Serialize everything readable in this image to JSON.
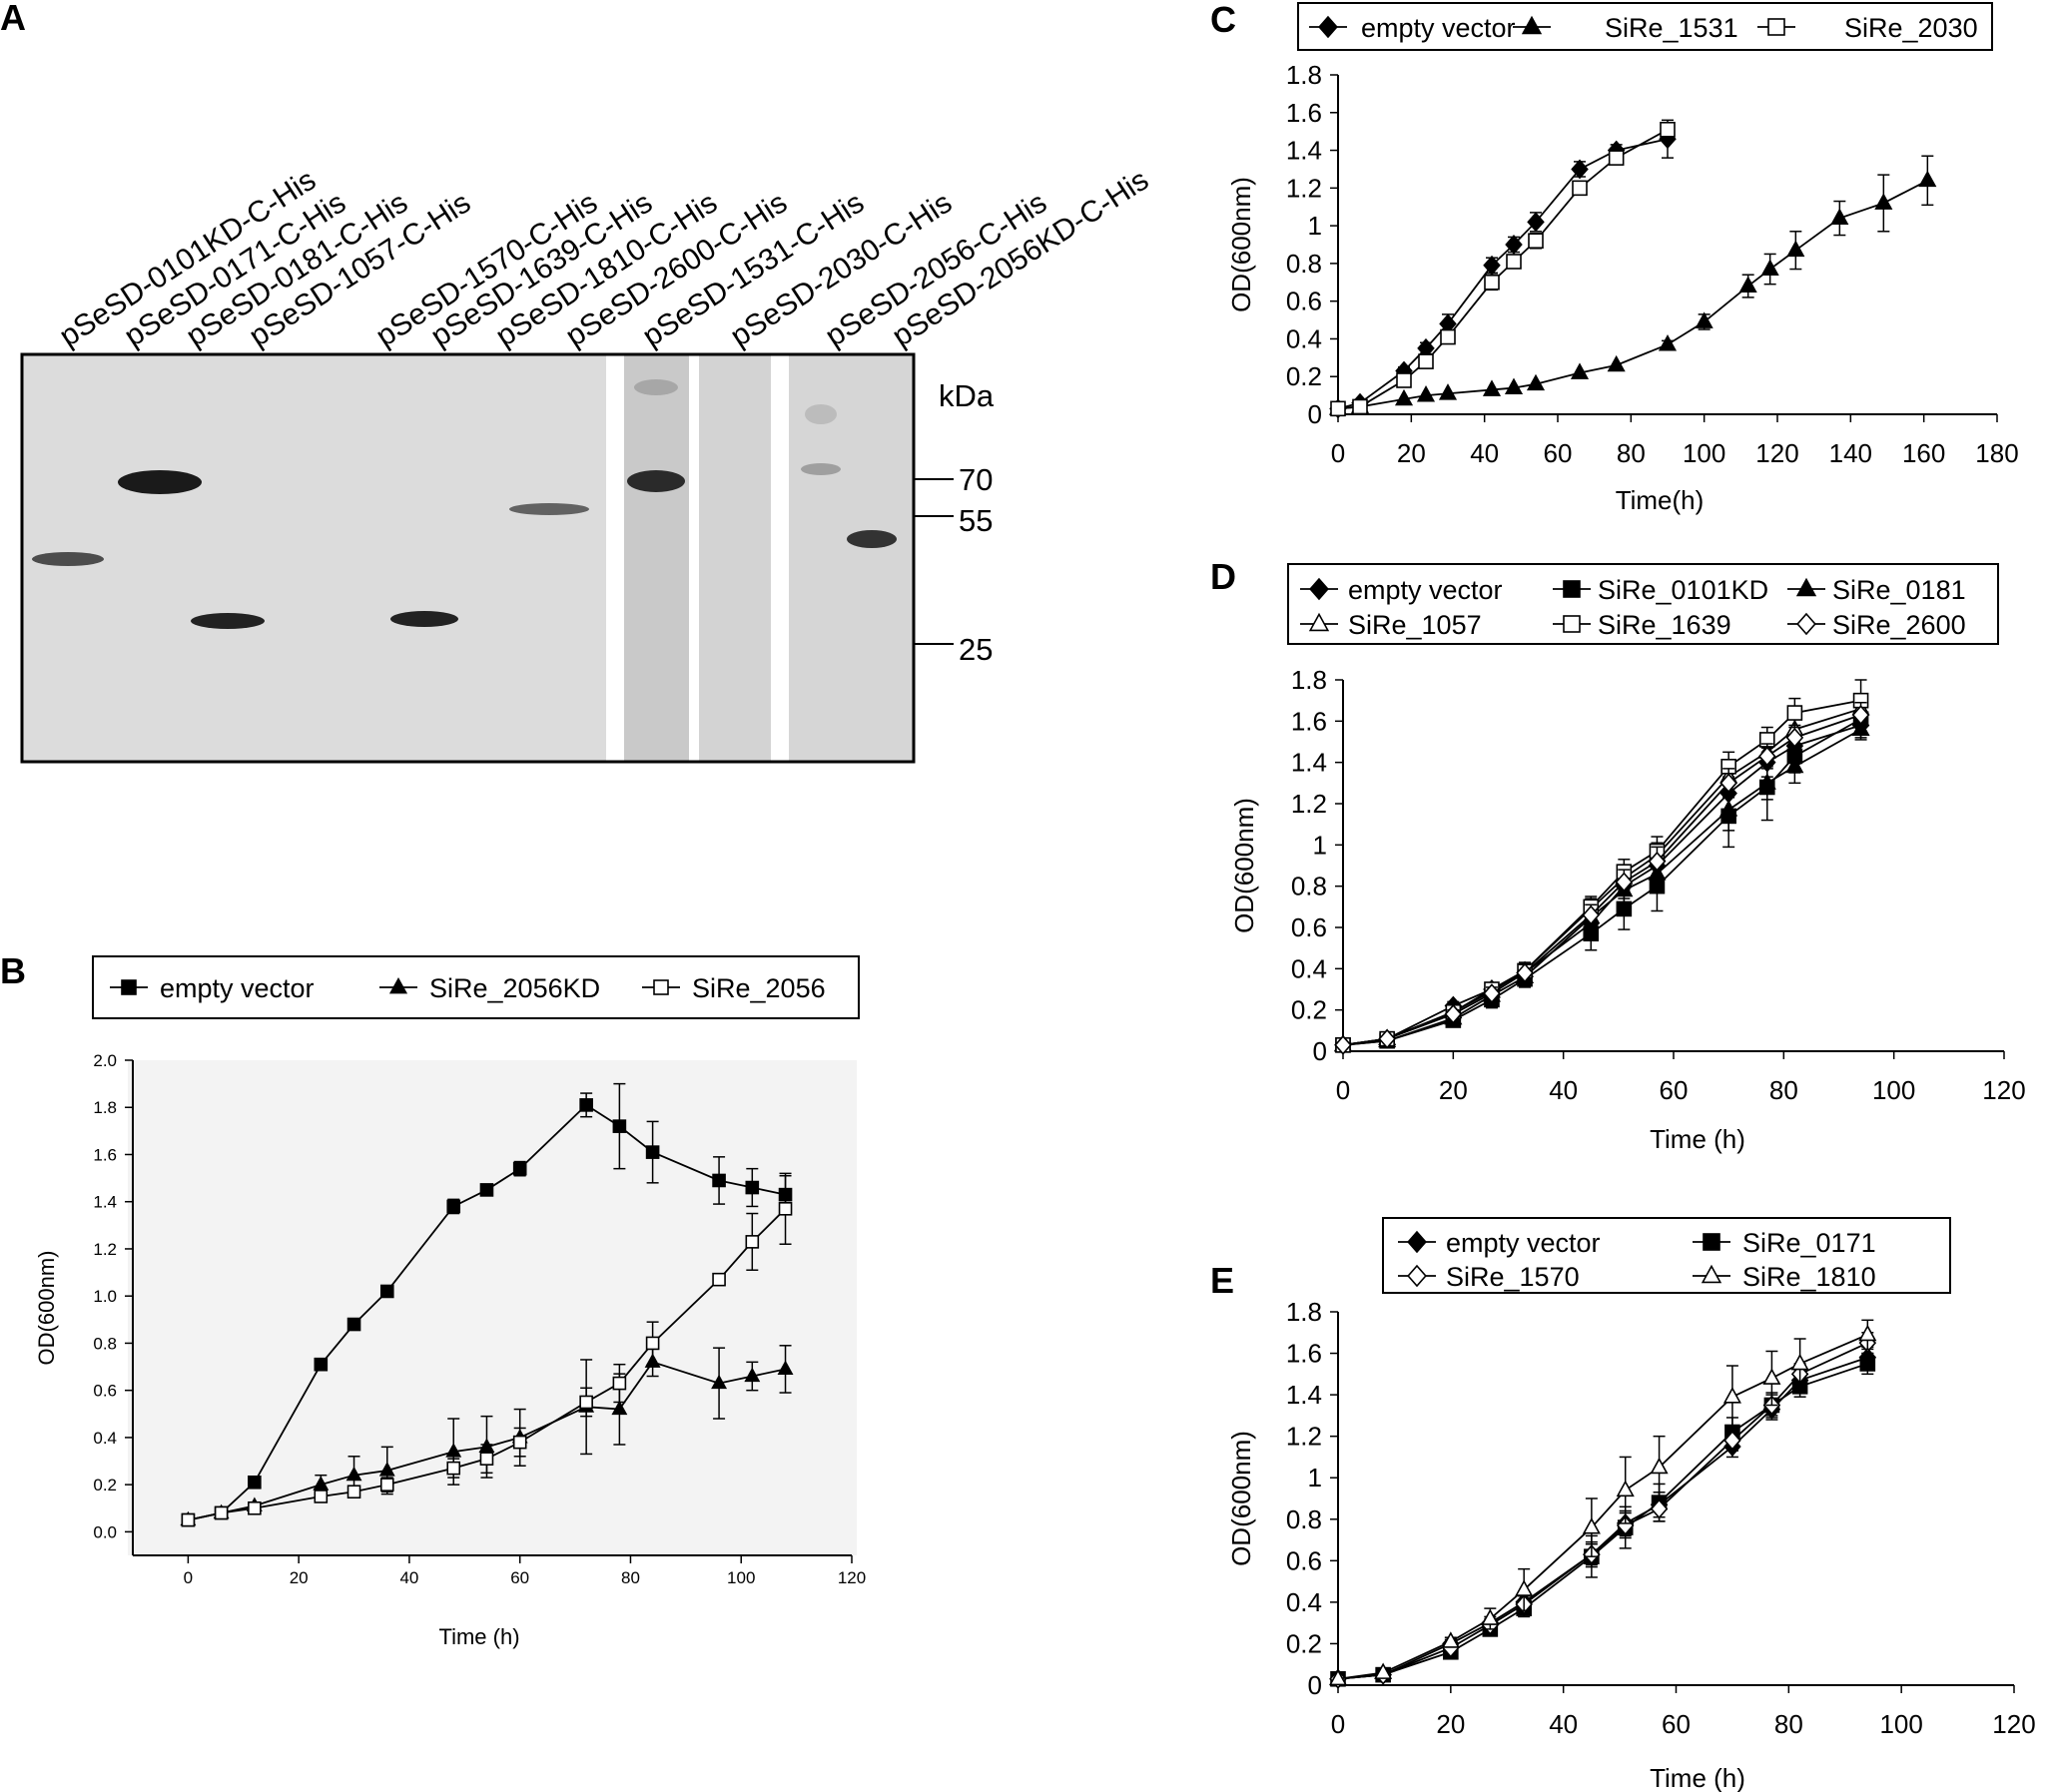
{
  "figure": {
    "panel_letters": [
      "A",
      "B",
      "C",
      "D",
      "E"
    ]
  },
  "blot": {
    "lanes": [
      "pSeSD-0101KD-C-His",
      "pSeSD-0171-C-His",
      "pSeSD-0181-C-His",
      "pSeSD-1057-C-His",
      "pSeSD-1570-C-His",
      "pSeSD-1639-C-His",
      "pSeSD-1810-C-His",
      "pSeSD-2600-C-His",
      "pSeSD-1531-C-His",
      "pSeSD-2030-C-His",
      "pSeSD-2056-C-His",
      "pSeSD-2056KD-C-His"
    ],
    "marker_unit": "kDa",
    "markers": [
      "70",
      "55",
      "25"
    ]
  },
  "chart_data": [
    {
      "panel": "B",
      "type": "line",
      "xlabel": "Time (h)",
      "ylabel": "OD(600nm)",
      "xlim": [
        -10,
        120
      ],
      "ylim": [
        -0.1,
        2.0
      ],
      "xticks": [
        "0",
        "20",
        "40",
        "60",
        "80",
        "100",
        "120"
      ],
      "yticks": [
        "0.0",
        "0.2",
        "0.4",
        "0.6",
        "0.8",
        "1.0",
        "1.2",
        "1.4",
        "1.6",
        "1.8",
        "2.0"
      ],
      "legend": [
        "empty vector",
        "SiRe_2056KD",
        "SiRe_2056"
      ],
      "series": [
        {
          "name": "empty vector",
          "marker": "square-filled",
          "x": [
            0,
            6,
            12,
            24,
            30,
            36,
            48,
            54,
            60,
            72,
            78,
            84,
            96,
            102,
            108
          ],
          "y": [
            0.05,
            0.08,
            0.21,
            0.71,
            0.88,
            1.02,
            1.38,
            1.45,
            1.54,
            1.81,
            1.72,
            1.61,
            1.49,
            1.46,
            1.43
          ],
          "err": [
            0,
            0,
            0.01,
            0.01,
            0.01,
            0.01,
            0.03,
            0.01,
            0.03,
            0.05,
            0.18,
            0.13,
            0.1,
            0.08,
            0.08
          ]
        },
        {
          "name": "SiRe_2056KD",
          "marker": "triangle-filled",
          "x": [
            0,
            6,
            12,
            24,
            30,
            36,
            48,
            54,
            60,
            72,
            78,
            84,
            96,
            102,
            108
          ],
          "y": [
            0.05,
            0.08,
            0.11,
            0.2,
            0.24,
            0.26,
            0.34,
            0.36,
            0.4,
            0.53,
            0.52,
            0.72,
            0.63,
            0.66,
            0.69
          ],
          "err": [
            0,
            0,
            0.01,
            0.04,
            0.08,
            0.1,
            0.14,
            0.13,
            0.12,
            0.2,
            0.15,
            0.06,
            0.15,
            0.06,
            0.1
          ]
        },
        {
          "name": "SiRe_2056",
          "marker": "square-open",
          "x": [
            0,
            6,
            12,
            24,
            30,
            36,
            48,
            54,
            60,
            72,
            78,
            84,
            96,
            102,
            108
          ],
          "y": [
            0.05,
            0.08,
            0.1,
            0.15,
            0.17,
            0.2,
            0.27,
            0.31,
            0.38,
            0.55,
            0.63,
            0.8,
            1.07,
            1.23,
            1.37
          ],
          "err": [
            0,
            0,
            0,
            0,
            0,
            0.03,
            0.04,
            0.06,
            0.06,
            0.06,
            0.08,
            0.09,
            0.01,
            0.12,
            0.15
          ]
        }
      ]
    },
    {
      "panel": "C",
      "type": "line",
      "xlabel": "Time(h)",
      "ylabel": "OD(600nm)",
      "xlim": [
        0,
        180
      ],
      "ylim": [
        0,
        1.8
      ],
      "xticks": [
        "0",
        "20",
        "40",
        "60",
        "80",
        "100",
        "120",
        "140",
        "160",
        "180"
      ],
      "yticks": [
        "0",
        "0.2",
        "0.4",
        "0.6",
        "0.8",
        "1",
        "1.2",
        "1.4",
        "1.6",
        "1.8"
      ],
      "legend": [
        "empty vector",
        "SiRe_1531",
        "SiRe_2030"
      ],
      "series": [
        {
          "name": "empty vector",
          "marker": "diamond-filled",
          "x": [
            0,
            6,
            18,
            24,
            30,
            42,
            48,
            54,
            66,
            76,
            90
          ],
          "y": [
            0.03,
            0.06,
            0.23,
            0.35,
            0.48,
            0.79,
            0.9,
            1.02,
            1.3,
            1.4,
            1.46
          ],
          "err": [
            0,
            0,
            0.02,
            0.03,
            0.05,
            0.04,
            0.04,
            0.05,
            0.04,
            0.03,
            0.1
          ]
        },
        {
          "name": "SiRe_1531",
          "marker": "triangle-filled",
          "x": [
            0,
            6,
            18,
            24,
            30,
            42,
            48,
            54,
            66,
            76,
            90,
            100,
            112,
            118,
            125,
            137,
            149,
            161
          ],
          "y": [
            0.03,
            0.04,
            0.08,
            0.1,
            0.11,
            0.13,
            0.14,
            0.16,
            0.22,
            0.26,
            0.37,
            0.49,
            0.68,
            0.77,
            0.87,
            1.04,
            1.12,
            1.24
          ],
          "err": [
            0,
            0,
            0,
            0,
            0,
            0,
            0,
            0,
            0,
            0,
            0.02,
            0.04,
            0.06,
            0.08,
            0.1,
            0.09,
            0.15,
            0.13
          ]
        },
        {
          "name": "SiRe_2030",
          "marker": "square-open",
          "x": [
            0,
            6,
            18,
            24,
            30,
            42,
            48,
            54,
            66,
            76,
            90
          ],
          "y": [
            0.03,
            0.04,
            0.18,
            0.28,
            0.41,
            0.7,
            0.81,
            0.92,
            1.2,
            1.36,
            1.51
          ],
          "err": [
            0,
            0,
            0.02,
            0.03,
            0.03,
            0.04,
            0.03,
            0.04,
            0.03,
            0.03,
            0.03
          ]
        }
      ]
    },
    {
      "panel": "D",
      "type": "line",
      "xlabel": "Time (h)",
      "ylabel": "OD(600nm)",
      "xlim": [
        0,
        120
      ],
      "ylim": [
        0,
        1.8
      ],
      "xticks": [
        "0",
        "20",
        "40",
        "60",
        "80",
        "100",
        "120"
      ],
      "yticks": [
        "0",
        "0.2",
        "0.4",
        "0.6",
        "0.8",
        "1",
        "1.2",
        "1.4",
        "1.6",
        "1.8"
      ],
      "legend": [
        "empty vector",
        "SiRe_0101KD",
        "SiRe_0181",
        "SiRe_1057",
        "SiRe_1639",
        "SiRe_2600"
      ],
      "series": [
        {
          "name": "empty vector",
          "marker": "diamond-filled",
          "x": [
            0,
            8,
            20,
            27,
            33,
            45,
            51,
            57,
            70,
            77,
            82,
            94
          ],
          "y": [
            0.03,
            0.06,
            0.22,
            0.3,
            0.38,
            0.62,
            0.8,
            0.9,
            1.25,
            1.4,
            1.48,
            1.58
          ],
          "err": [
            0,
            0,
            0.02,
            0.03,
            0.04,
            0.05,
            0.06,
            0.07,
            0.08,
            0.07,
            0.06,
            0.06
          ]
        },
        {
          "name": "SiRe_0101KD",
          "marker": "square-filled",
          "x": [
            0,
            8,
            20,
            27,
            33,
            45,
            51,
            57,
            70,
            77,
            82,
            94
          ],
          "y": [
            0.03,
            0.05,
            0.15,
            0.25,
            0.35,
            0.57,
            0.69,
            0.8,
            1.14,
            1.28,
            1.43,
            1.61
          ],
          "err": [
            0,
            0,
            0.02,
            0.04,
            0.04,
            0.08,
            0.1,
            0.12,
            0.15,
            0.16,
            0.08,
            0.07
          ]
        },
        {
          "name": "SiRe_0181",
          "marker": "triangle-filled",
          "x": [
            0,
            8,
            20,
            27,
            33,
            45,
            51,
            57,
            70,
            77,
            82,
            94
          ],
          "y": [
            0.03,
            0.05,
            0.16,
            0.27,
            0.36,
            0.65,
            0.78,
            0.86,
            1.17,
            1.3,
            1.38,
            1.56
          ],
          "err": [
            0,
            0,
            0.02,
            0.03,
            0.04,
            0.06,
            0.07,
            0.08,
            0.1,
            0.08,
            0.08,
            0.05
          ]
        },
        {
          "name": "SiRe_1057",
          "marker": "triangle-open",
          "x": [
            0,
            8,
            20,
            27,
            33,
            45,
            51,
            57,
            70,
            77,
            82,
            94
          ],
          "y": [
            0.03,
            0.06,
            0.19,
            0.29,
            0.39,
            0.69,
            0.84,
            0.95,
            1.33,
            1.45,
            1.56,
            1.66
          ],
          "err": [
            0,
            0,
            0.02,
            0.03,
            0.04,
            0.05,
            0.06,
            0.06,
            0.06,
            0.05,
            0.05,
            0.05
          ]
        },
        {
          "name": "SiRe_1639",
          "marker": "square-open",
          "x": [
            0,
            8,
            20,
            27,
            33,
            45,
            51,
            57,
            70,
            77,
            82,
            94
          ],
          "y": [
            0.03,
            0.06,
            0.19,
            0.3,
            0.39,
            0.7,
            0.87,
            0.97,
            1.38,
            1.51,
            1.64,
            1.7
          ],
          "err": [
            0,
            0,
            0.02,
            0.03,
            0.04,
            0.05,
            0.06,
            0.07,
            0.07,
            0.06,
            0.07,
            0.1
          ]
        },
        {
          "name": "SiRe_2600",
          "marker": "diamond-open",
          "x": [
            0,
            8,
            20,
            27,
            33,
            45,
            51,
            57,
            70,
            77,
            82,
            94
          ],
          "y": [
            0.03,
            0.06,
            0.18,
            0.28,
            0.38,
            0.66,
            0.82,
            0.92,
            1.3,
            1.43,
            1.52,
            1.63
          ],
          "err": [
            0,
            0,
            0.02,
            0.03,
            0.04,
            0.05,
            0.06,
            0.07,
            0.07,
            0.06,
            0.06,
            0.06
          ]
        }
      ]
    },
    {
      "panel": "E",
      "type": "line",
      "xlabel": "Time (h)",
      "ylabel": "OD(600nm)",
      "xlim": [
        0,
        120
      ],
      "ylim": [
        0,
        1.8
      ],
      "xticks": [
        "0",
        "20",
        "40",
        "60",
        "80",
        "100",
        "120"
      ],
      "yticks": [
        "0",
        "0.2",
        "0.4",
        "0.6",
        "0.8",
        "1",
        "1.2",
        "1.4",
        "1.6",
        "1.8"
      ],
      "legend": [
        "empty vector",
        "SiRe_0171",
        "SiRe_1570",
        "SiRe_1810"
      ],
      "series": [
        {
          "name": "empty vector",
          "marker": "diamond-filled",
          "x": [
            0,
            8,
            20,
            27,
            33,
            45,
            51,
            57,
            70,
            77,
            82,
            94
          ],
          "y": [
            0.03,
            0.05,
            0.2,
            0.3,
            0.4,
            0.63,
            0.78,
            0.87,
            1.15,
            1.33,
            1.47,
            1.58
          ],
          "err": [
            0,
            0,
            0.02,
            0.03,
            0.03,
            0.05,
            0.06,
            0.06,
            0.05,
            0.05,
            0.05,
            0.05
          ]
        },
        {
          "name": "SiRe_0171",
          "marker": "square-filled",
          "x": [
            0,
            8,
            20,
            27,
            33,
            45,
            51,
            57,
            70,
            77,
            82,
            94
          ],
          "y": [
            0.03,
            0.05,
            0.16,
            0.27,
            0.37,
            0.62,
            0.76,
            0.88,
            1.22,
            1.35,
            1.44,
            1.55
          ],
          "err": [
            0,
            0,
            0.02,
            0.03,
            0.04,
            0.1,
            0.1,
            0.09,
            0.07,
            0.06,
            0.05,
            0.05
          ]
        },
        {
          "name": "SiRe_1570",
          "marker": "diamond-open",
          "x": [
            0,
            8,
            20,
            27,
            33,
            45,
            51,
            57,
            70,
            77,
            82,
            94
          ],
          "y": [
            0.03,
            0.05,
            0.18,
            0.29,
            0.39,
            0.63,
            0.77,
            0.85,
            1.18,
            1.35,
            1.5,
            1.65
          ],
          "err": [
            0,
            0,
            0.02,
            0.03,
            0.04,
            0.06,
            0.06,
            0.06,
            0.05,
            0.05,
            0.05,
            0.05
          ]
        },
        {
          "name": "SiRe_1810",
          "marker": "triangle-open",
          "x": [
            0,
            8,
            20,
            27,
            33,
            45,
            51,
            57,
            70,
            77,
            82,
            94
          ],
          "y": [
            0.03,
            0.06,
            0.21,
            0.32,
            0.46,
            0.76,
            0.94,
            1.05,
            1.39,
            1.48,
            1.55,
            1.69
          ],
          "err": [
            0,
            0,
            0.02,
            0.05,
            0.1,
            0.14,
            0.16,
            0.15,
            0.15,
            0.13,
            0.12,
            0.07
          ]
        }
      ]
    }
  ]
}
